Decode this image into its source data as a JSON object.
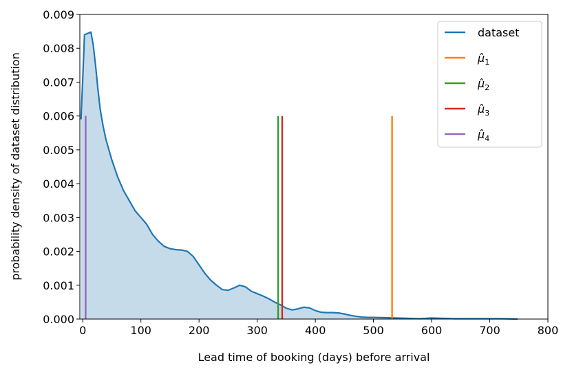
{
  "chart_data": {
    "type": "line",
    "xlabel": "Lead time of booking (days) before arrival",
    "ylabel": "probability density of dataset distribution",
    "xlim": [
      -5,
      800
    ],
    "ylim": [
      0,
      0.009
    ],
    "x_ticks": [
      "0",
      "100",
      "200",
      "300",
      "400",
      "500",
      "600",
      "700",
      "800"
    ],
    "y_ticks": [
      "0.000",
      "0.001",
      "0.002",
      "0.003",
      "0.004",
      "0.005",
      "0.006",
      "0.007",
      "0.008",
      "0.009"
    ],
    "grid": false,
    "legend_position": "top-right",
    "series": [
      {
        "name": "dataset",
        "kind": "density",
        "color": "#1f77b4",
        "fill_color": "#c6dbea",
        "x": [
          -3,
          0,
          3,
          6,
          10,
          14,
          18,
          22,
          26,
          30,
          35,
          40,
          50,
          60,
          70,
          80,
          90,
          100,
          110,
          120,
          130,
          140,
          150,
          160,
          170,
          180,
          190,
          200,
          210,
          220,
          230,
          240,
          250,
          260,
          270,
          280,
          290,
          300,
          310,
          320,
          330,
          340,
          350,
          360,
          370,
          380,
          390,
          400,
          410,
          420,
          430,
          440,
          450,
          460,
          470,
          480,
          490,
          500,
          520,
          540,
          560,
          580,
          600,
          620,
          640,
          660,
          680,
          700,
          720,
          748
        ],
        "y": [
          0.0059,
          0.0071,
          0.0084,
          0.00842,
          0.00845,
          0.00848,
          0.0081,
          0.0075,
          0.0068,
          0.0062,
          0.0057,
          0.0053,
          0.0047,
          0.0042,
          0.0038,
          0.0035,
          0.0032,
          0.003,
          0.0028,
          0.0025,
          0.0023,
          0.00215,
          0.00208,
          0.00205,
          0.00204,
          0.002,
          0.00185,
          0.0016,
          0.00135,
          0.00115,
          0.001,
          0.00087,
          0.00085,
          0.00092,
          0.001,
          0.00095,
          0.00082,
          0.00075,
          0.00068,
          0.0006,
          0.0005,
          0.00042,
          0.00032,
          0.00027,
          0.0003,
          0.00035,
          0.00033,
          0.00025,
          0.0002,
          0.00019,
          0.00019,
          0.00018,
          0.00015,
          0.00011,
          8e-05,
          6e-05,
          5e-05,
          5e-05,
          4e-05,
          3e-05,
          2e-05,
          1e-05,
          3e-05,
          2e-05,
          1e-05,
          1e-05,
          1e-05,
          1e-05,
          1e-05,
          0.0
        ]
      },
      {
        "name": "μ̂1",
        "kind": "vline",
        "color": "#ff7f0e",
        "x": 532,
        "y_top": 0.006
      },
      {
        "name": "μ̂2",
        "kind": "vline",
        "color": "#2ca02c",
        "x": 336,
        "y_top": 0.006
      },
      {
        "name": "μ̂3",
        "kind": "vline",
        "color": "#d62728",
        "x": 343,
        "y_top": 0.006
      },
      {
        "name": "μ̂4",
        "kind": "vline",
        "color": "#9467bd",
        "x": 5,
        "y_top": 0.006
      }
    ],
    "legend": [
      {
        "label": "dataset",
        "math": false,
        "color": "#1f77b4"
      },
      {
        "base": "μ",
        "sub": "1",
        "math": true,
        "color": "#ff7f0e"
      },
      {
        "base": "μ",
        "sub": "2",
        "math": true,
        "color": "#2ca02c"
      },
      {
        "base": "μ",
        "sub": "3",
        "math": true,
        "color": "#d62728"
      },
      {
        "base": "μ",
        "sub": "4",
        "math": true,
        "color": "#9467bd"
      }
    ]
  }
}
